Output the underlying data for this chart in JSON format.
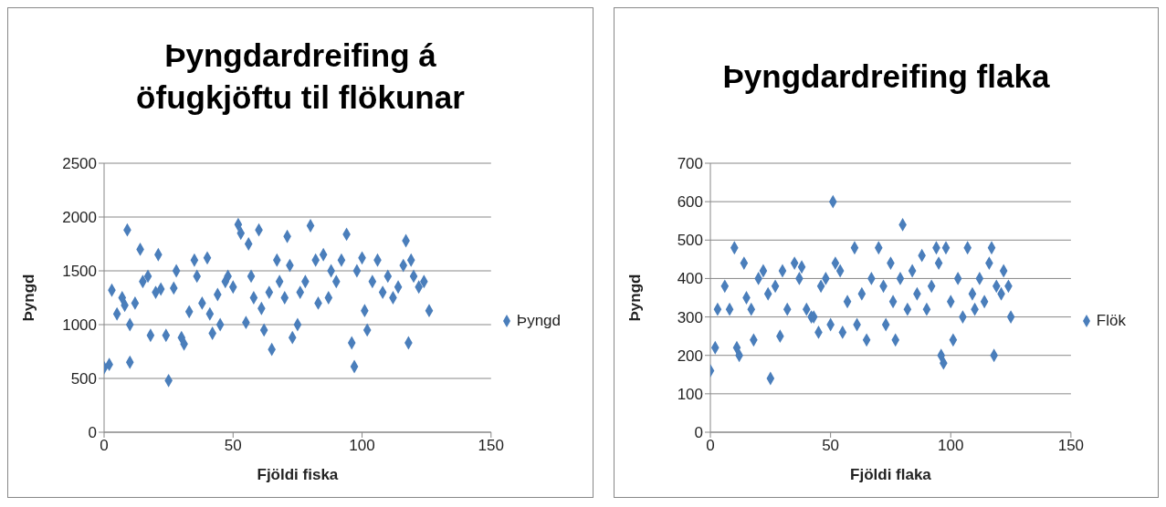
{
  "chart_data": [
    {
      "type": "scatter",
      "title": "Þyngdardreifing á öfugkjöftu til flökunar",
      "xlabel": "Fjöldi fiska",
      "ylabel": "Þyngd",
      "xlim": [
        0,
        150
      ],
      "xticks": [
        0,
        50,
        100,
        150
      ],
      "ylim": [
        0,
        2500
      ],
      "yticks": [
        0,
        500,
        1000,
        1500,
        2000,
        2500
      ],
      "grid": "y",
      "legend": "right",
      "marker": "diamond",
      "x": [
        0,
        2,
        3,
        5,
        7,
        8,
        9,
        10,
        10,
        12,
        14,
        15,
        17,
        18,
        20,
        21,
        22,
        24,
        25,
        27,
        28,
        30,
        31,
        33,
        35,
        36,
        38,
        40,
        41,
        42,
        44,
        45,
        47,
        48,
        50,
        52,
        53,
        55,
        56,
        57,
        58,
        60,
        61,
        62,
        64,
        65,
        67,
        68,
        70,
        71,
        72,
        73,
        75,
        76,
        78,
        80,
        82,
        83,
        85,
        87,
        88,
        90,
        92,
        94,
        96,
        97,
        98,
        100,
        101,
        102,
        104,
        106,
        108,
        110,
        112,
        114,
        116,
        117,
        118,
        119,
        120,
        122,
        124,
        126
      ],
      "series": [
        {
          "name": "Þyngd",
          "color": "#4a7ebb",
          "values": [
            600,
            630,
            1320,
            1100,
            1250,
            1180,
            1880,
            1000,
            650,
            1200,
            1700,
            1400,
            1450,
            900,
            1300,
            1650,
            1330,
            900,
            480,
            1340,
            1500,
            880,
            820,
            1120,
            1600,
            1450,
            1200,
            1620,
            1100,
            920,
            1280,
            1000,
            1400,
            1450,
            1350,
            1930,
            1850,
            1020,
            1750,
            1450,
            1250,
            1880,
            1150,
            950,
            1300,
            770,
            1600,
            1400,
            1250,
            1820,
            1550,
            880,
            1000,
            1300,
            1400,
            1920,
            1600,
            1200,
            1650,
            1250,
            1500,
            1400,
            1600,
            1840,
            830,
            610,
            1500,
            1620,
            1130,
            950,
            1400,
            1600,
            1300,
            1450,
            1250,
            1350,
            1550,
            1780,
            830,
            1600,
            1450,
            1350,
            1400,
            1130
          ]
        }
      ]
    },
    {
      "type": "scatter",
      "title": "Þyngdardreifing flaka",
      "xlabel": "Fjöldi flaka",
      "ylabel": "Þyngd",
      "xlim": [
        0,
        150
      ],
      "xticks": [
        0,
        50,
        100,
        150
      ],
      "ylim": [
        0,
        700
      ],
      "yticks": [
        0,
        100,
        200,
        300,
        400,
        500,
        600,
        700
      ],
      "grid": "y",
      "legend": "right",
      "marker": "diamond",
      "x": [
        0,
        2,
        3,
        6,
        8,
        10,
        11,
        12,
        14,
        15,
        17,
        18,
        20,
        22,
        24,
        25,
        27,
        29,
        30,
        32,
        35,
        37,
        38,
        40,
        42,
        43,
        45,
        46,
        48,
        50,
        51,
        52,
        54,
        55,
        57,
        60,
        61,
        63,
        65,
        67,
        70,
        72,
        73,
        75,
        76,
        77,
        79,
        80,
        82,
        84,
        86,
        88,
        90,
        92,
        94,
        95,
        96,
        97,
        98,
        100,
        101,
        103,
        105,
        107,
        109,
        110,
        112,
        114,
        116,
        117,
        118,
        119,
        121,
        122,
        124,
        125
      ],
      "series": [
        {
          "name": "Flök",
          "color": "#4a7ebb",
          "values": [
            160,
            220,
            320,
            380,
            320,
            480,
            220,
            200,
            440,
            350,
            320,
            240,
            400,
            420,
            360,
            140,
            380,
            250,
            420,
            320,
            440,
            400,
            430,
            320,
            300,
            300,
            260,
            380,
            400,
            280,
            600,
            440,
            420,
            260,
            340,
            480,
            280,
            360,
            240,
            400,
            480,
            380,
            280,
            440,
            340,
            240,
            400,
            540,
            320,
            420,
            360,
            460,
            320,
            380,
            480,
            440,
            200,
            180,
            480,
            340,
            240,
            400,
            300,
            480,
            360,
            320,
            400,
            340,
            440,
            480,
            200,
            380,
            360,
            420,
            380,
            300
          ]
        }
      ]
    }
  ]
}
